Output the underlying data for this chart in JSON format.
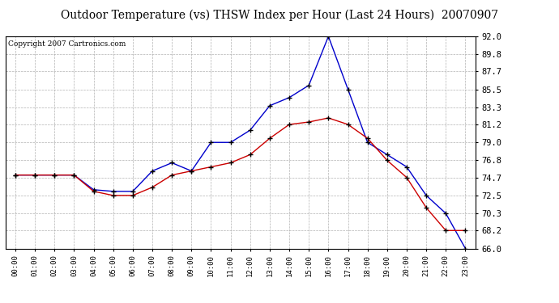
{
  "title": "Outdoor Temperature (vs) THSW Index per Hour (Last 24 Hours)  20070907",
  "copyright": "Copyright 2007 Cartronics.com",
  "hours": [
    "00:00",
    "01:00",
    "02:00",
    "03:00",
    "04:00",
    "05:00",
    "06:00",
    "07:00",
    "08:00",
    "09:00",
    "10:00",
    "11:00",
    "12:00",
    "13:00",
    "14:00",
    "15:00",
    "16:00",
    "17:00",
    "18:00",
    "19:00",
    "20:00",
    "21:00",
    "22:00",
    "23:00"
  ],
  "temp_red": [
    75.0,
    75.0,
    75.0,
    75.0,
    73.0,
    72.5,
    72.5,
    73.5,
    75.0,
    75.5,
    76.0,
    76.5,
    77.5,
    79.5,
    81.2,
    81.5,
    82.0,
    81.2,
    79.5,
    76.8,
    74.7,
    71.0,
    68.2,
    68.2
  ],
  "thsw_blue": [
    75.0,
    75.0,
    75.0,
    75.0,
    73.2,
    73.0,
    73.0,
    75.5,
    76.5,
    75.5,
    79.0,
    79.0,
    80.5,
    83.5,
    84.5,
    86.0,
    92.0,
    85.5,
    79.0,
    77.5,
    76.0,
    72.5,
    70.3,
    66.0
  ],
  "ymin": 66.0,
  "ymax": 92.0,
  "yticks": [
    66.0,
    68.2,
    70.3,
    72.5,
    74.7,
    76.8,
    79.0,
    81.2,
    83.3,
    85.5,
    87.7,
    89.8,
    92.0
  ],
  "red_color": "#cc0000",
  "blue_color": "#0000cc",
  "grid_color": "#aaaaaa",
  "bg_color": "#ffffff",
  "title_fontsize": 10,
  "copyright_fontsize": 6.5
}
